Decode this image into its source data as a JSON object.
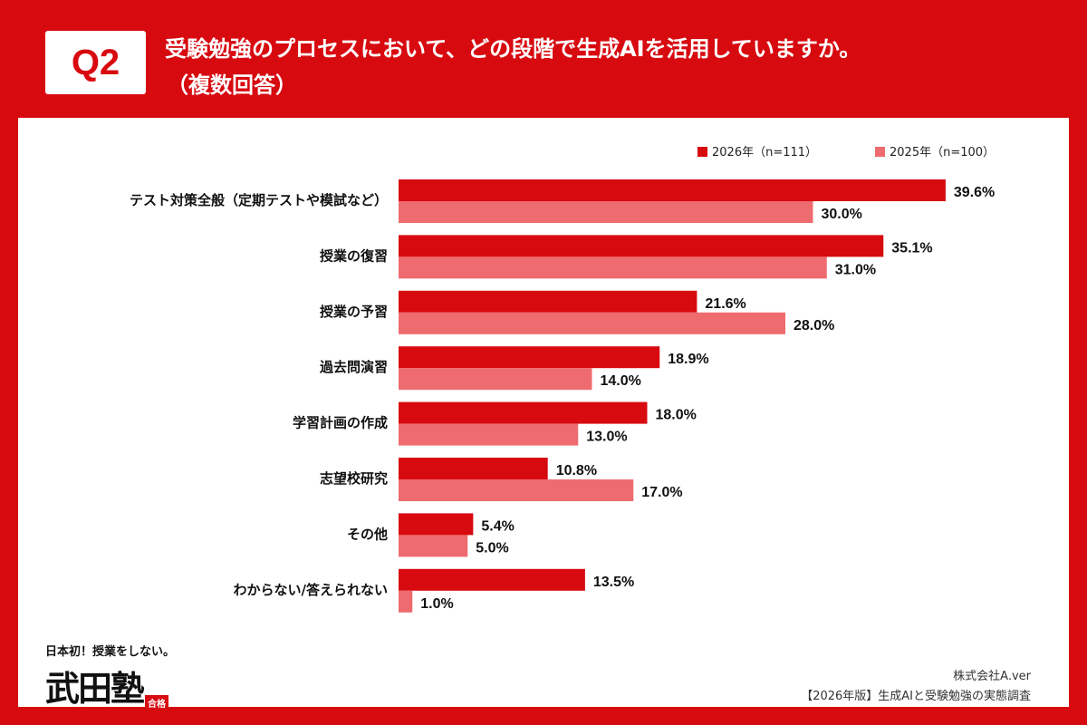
{
  "header": {
    "q_label": "Q2",
    "title_line1": "受験勉強のプロセスにおいて、どの段階で生成AIを活用していますか。",
    "title_line2": "（複数回答）"
  },
  "colors": {
    "brand": "#d70a10",
    "series_2026": "#d70a10",
    "series_2025": "#ee6b6f"
  },
  "chart_data": {
    "type": "bar",
    "orientation": "horizontal",
    "categories": [
      "テスト対策全般（定期テストや模試など）",
      "授業の復習",
      "授業の予習",
      "過去問演習",
      "学習計画の作成",
      "志望校研究",
      "その他",
      "わからない/答えられない"
    ],
    "series": [
      {
        "name": "2026年（n=111）",
        "values": [
          39.6,
          35.1,
          21.6,
          18.9,
          18.0,
          10.8,
          5.4,
          13.5
        ],
        "labels": [
          "39.6%",
          "35.1%",
          "21.6%",
          "18.9%",
          "18.0%",
          "10.8%",
          "5.4%",
          "13.5%"
        ]
      },
      {
        "name": "2025年（n=100）",
        "values": [
          30.0,
          31.0,
          28.0,
          14.0,
          13.0,
          17.0,
          5.0,
          1.0
        ],
        "labels": [
          "30.0%",
          "31.0%",
          "28.0%",
          "14.0%",
          "13.0%",
          "17.0%",
          "5.0%",
          "1.0%"
        ]
      }
    ],
    "legend_position": "top-right",
    "grid": false
  },
  "footer": {
    "logo_tagline": "日本初！授業をしない。",
    "logo_mark": "武田塾",
    "logo_stamp": "合格",
    "company": "株式会社A.ver",
    "source": "【2026年版】生成AIと受験勉強の実態調査"
  }
}
